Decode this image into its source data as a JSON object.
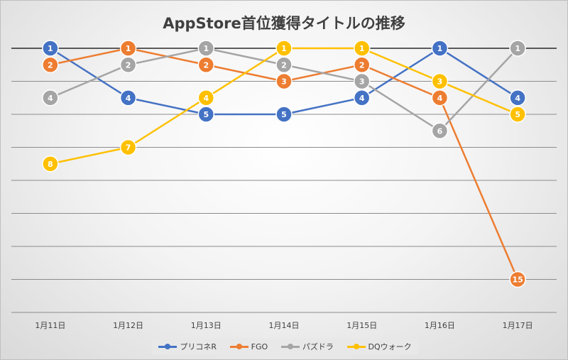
{
  "chart_data": {
    "type": "line",
    "title": "AppStore首位獲得タイトルの推移",
    "categories": [
      "1月11日",
      "1月12日",
      "1月13日",
      "1月14日",
      "1月15日",
      "1月16日",
      "1月17日"
    ],
    "y_inverted": true,
    "ylim": [
      1,
      17
    ],
    "grid": true,
    "legend_position": "bottom",
    "series": [
      {
        "name": "プリコネR",
        "color": "#4472C4",
        "values": [
          1,
          4,
          5,
          5,
          4,
          1,
          4
        ]
      },
      {
        "name": "FGO",
        "color": "#ED7D31",
        "values": [
          2,
          1,
          2,
          3,
          2,
          4,
          15
        ]
      },
      {
        "name": "パズドラ",
        "color": "#A5A5A5",
        "values": [
          4,
          2,
          1,
          2,
          3,
          6,
          1
        ]
      },
      {
        "name": "DQウォーク",
        "color": "#FFC000",
        "values": [
          8,
          7,
          4,
          1,
          1,
          3,
          5
        ]
      }
    ]
  }
}
